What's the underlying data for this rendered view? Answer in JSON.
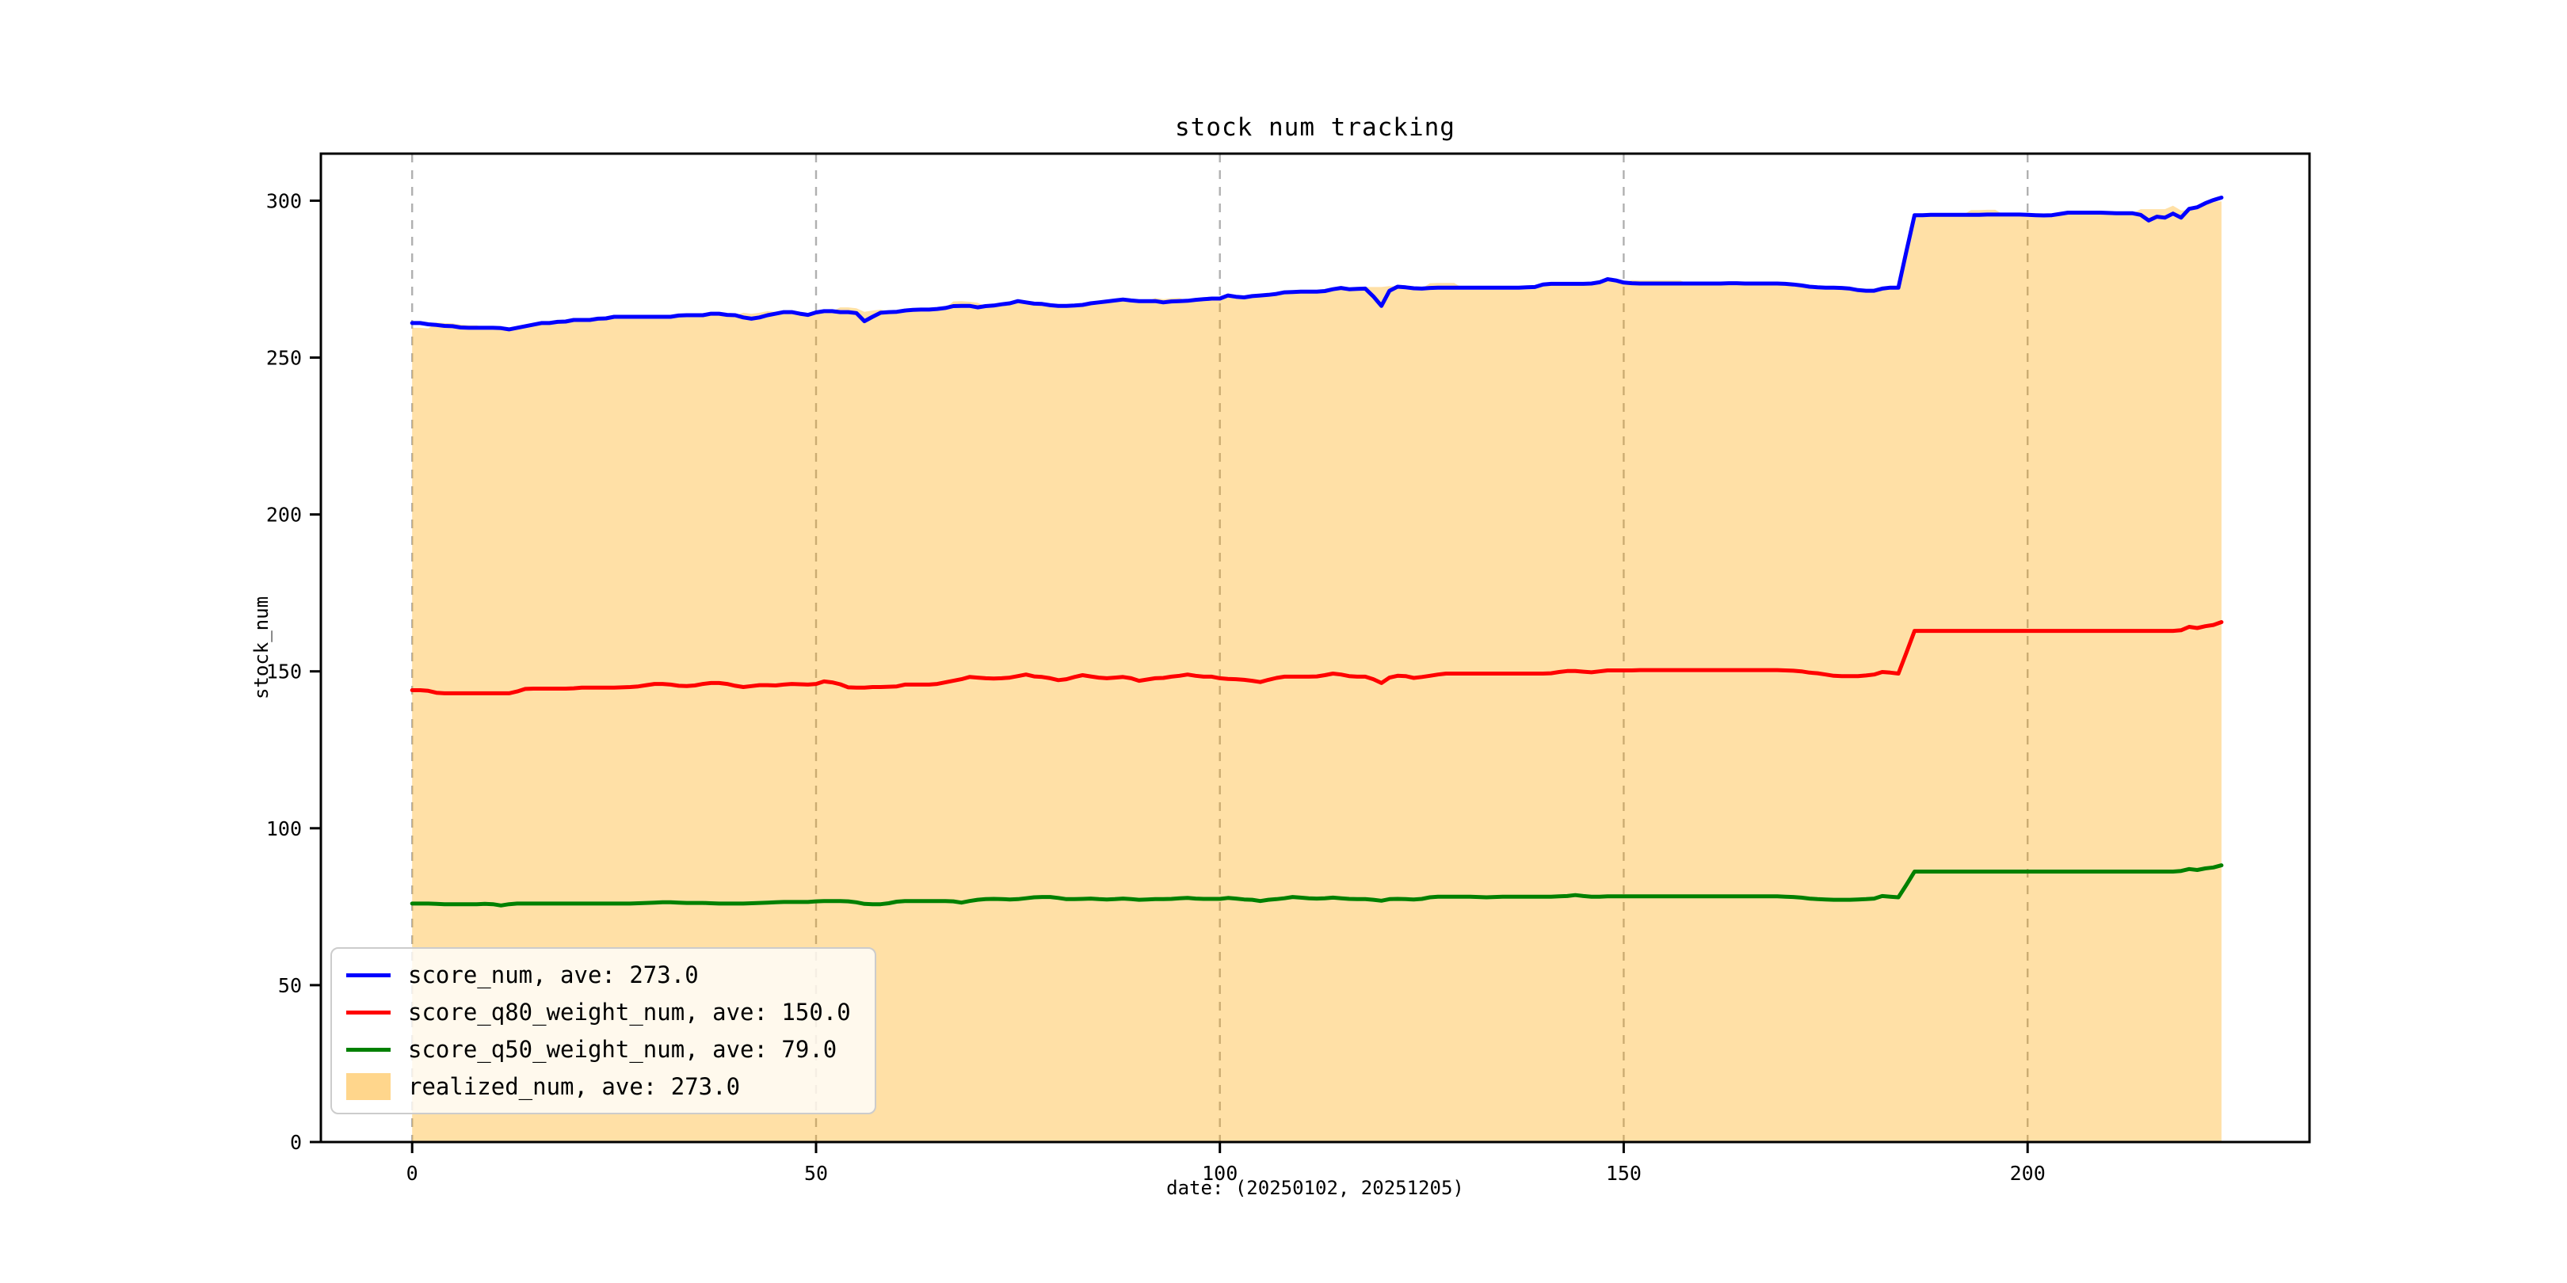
{
  "figure": {
    "title": "stock num tracking",
    "xlabel": "date: (20250102, 20251205)",
    "ylabel": "stock_num"
  },
  "colors": {
    "score_num": "#0000ff",
    "score_q80_weight_num": "#ff0000",
    "score_q50_weight_num": "#008000",
    "realized_fill": "#FFA500",
    "gridline": "#b0b0b0",
    "spine": "#000000",
    "legend_border": "#cccccc"
  },
  "chart_data": {
    "type": "line",
    "title": "stock num tracking",
    "xlabel": "date: (20250102, 20251205)",
    "ylabel": "stock_num",
    "xlim": [
      -11.3,
      234.9
    ],
    "ylim": [
      0,
      315
    ],
    "xticks": [
      0,
      50,
      100,
      150,
      200
    ],
    "yticks": [
      0,
      50,
      100,
      150,
      200,
      250,
      300
    ],
    "grid": "vertical-dashed",
    "legend_position": "lower left",
    "x_start": 0,
    "x_step": 1,
    "n_points": 225,
    "series": [
      {
        "name": "score_num",
        "label": "score_num, ave: 273.0",
        "ave": 273.0,
        "kind": "line",
        "color": "#0000ff",
        "values": [
          261,
          261,
          260.6,
          260.4,
          260.1,
          260,
          259.6,
          259.5,
          259.5,
          259.5,
          259.5,
          259.4,
          259,
          259.5,
          260,
          260.5,
          261,
          261,
          261.4,
          261.5,
          262,
          262,
          262,
          262.4,
          262.5,
          263,
          263,
          263,
          263,
          263,
          263,
          263,
          263,
          263.4,
          263.5,
          263.5,
          263.5,
          264,
          264,
          263.6,
          263.5,
          262.8,
          262.4,
          262.8,
          263.5,
          264,
          264.5,
          264.5,
          264,
          263.6,
          264.4,
          264.8,
          264.8,
          264.5,
          264.5,
          264.2,
          261.6,
          263,
          264.3,
          264.5,
          264.6,
          265,
          265.2,
          265.3,
          265.3,
          265.5,
          265.8,
          266.4,
          266.5,
          266.5,
          266,
          266.4,
          266.6,
          267,
          267.3,
          268,
          267.6,
          267.2,
          267.1,
          266.7,
          266.5,
          266.5,
          266.6,
          266.8,
          267.3,
          267.6,
          267.9,
          268.2,
          268.5,
          268.2,
          268,
          268,
          268,
          267.6,
          267.9,
          268,
          268.1,
          268.4,
          268.6,
          268.8,
          268.8,
          269.8,
          269.4,
          269.2,
          269.6,
          269.8,
          270,
          270.3,
          270.8,
          270.9,
          271,
          271,
          271,
          271.2,
          271.8,
          272.2,
          271.8,
          271.9,
          272,
          269.5,
          266.5,
          271.3,
          272.6,
          272.4,
          272.1,
          272,
          272.2,
          272.3,
          272.3,
          272.3,
          272.3,
          272.3,
          272.3,
          272.3,
          272.3,
          272.3,
          272.3,
          272.3,
          272.4,
          272.5,
          273.3,
          273.5,
          273.5,
          273.5,
          273.5,
          273.5,
          273.6,
          274,
          275,
          274.6,
          273.9,
          273.7,
          273.6,
          273.6,
          273.6,
          273.6,
          273.6,
          273.6,
          273.6,
          273.6,
          273.6,
          273.6,
          273.6,
          273.7,
          273.7,
          273.6,
          273.6,
          273.6,
          273.6,
          273.6,
          273.5,
          273.3,
          273,
          272.6,
          272.4,
          272.3,
          272.3,
          272.2,
          272,
          271.5,
          271.3,
          271.3,
          272,
          272.3,
          272.3,
          284,
          295.4,
          295.4,
          295.5,
          295.5,
          295.5,
          295.5,
          295.5,
          295.5,
          295.5,
          295.6,
          295.6,
          295.6,
          295.6,
          295.6,
          295.5,
          295.4,
          295.3,
          295.4,
          295.8,
          296.2,
          296.2,
          296.2,
          296.2,
          296.2,
          296.1,
          296,
          296,
          296,
          295.5,
          293.7,
          294.9,
          294.6,
          295.9,
          294.6,
          297.4,
          297.9,
          299.2,
          300.2,
          301
        ]
      },
      {
        "name": "score_q80_weight_num",
        "label": "score_q80_weight_num, ave: 150.0",
        "ave": 150.0,
        "kind": "line",
        "color": "#ff0000",
        "values": [
          144,
          144,
          143.8,
          143.2,
          143,
          143,
          143,
          143,
          143,
          143,
          143,
          143,
          143,
          143.6,
          144.4,
          144.5,
          144.5,
          144.5,
          144.5,
          144.5,
          144.6,
          144.8,
          144.8,
          144.8,
          144.8,
          144.8,
          144.9,
          145,
          145.2,
          145.6,
          146,
          146,
          145.8,
          145.4,
          145.3,
          145.5,
          146,
          146.3,
          146.3,
          146,
          145.4,
          145,
          145.3,
          145.6,
          145.6,
          145.5,
          145.8,
          146,
          145.9,
          145.8,
          146,
          146.8,
          146.5,
          145.9,
          144.9,
          144.8,
          144.8,
          145,
          145,
          145.1,
          145.2,
          145.8,
          145.8,
          145.8,
          145.8,
          146,
          146.5,
          147,
          147.5,
          148.2,
          148,
          147.8,
          147.7,
          147.8,
          148,
          148.5,
          149,
          148.4,
          148.2,
          147.8,
          147.2,
          147.5,
          148.2,
          148.8,
          148.4,
          148,
          147.8,
          148,
          148.2,
          147.8,
          147,
          147.4,
          147.8,
          147.9,
          148.3,
          148.6,
          149,
          148.6,
          148.3,
          148.3,
          147.8,
          147.6,
          147.5,
          147.3,
          147,
          146.6,
          147.3,
          147.9,
          148.3,
          148.3,
          148.3,
          148.3,
          148.4,
          148.8,
          149.3,
          149,
          148.5,
          148.3,
          148.3,
          147.5,
          146.3,
          148,
          148.6,
          148.5,
          147.9,
          148.2,
          148.6,
          149,
          149.3,
          149.3,
          149.3,
          149.3,
          149.3,
          149.3,
          149.3,
          149.3,
          149.3,
          149.3,
          149.3,
          149.3,
          149.3,
          149.4,
          149.8,
          150.1,
          150.1,
          149.9,
          149.7,
          150,
          150.3,
          150.3,
          150.3,
          150.3,
          150.4,
          150.4,
          150.4,
          150.4,
          150.4,
          150.4,
          150.4,
          150.4,
          150.4,
          150.4,
          150.4,
          150.4,
          150.4,
          150.4,
          150.4,
          150.4,
          150.4,
          150.4,
          150.3,
          150.2,
          150,
          149.6,
          149.4,
          149,
          148.6,
          148.5,
          148.5,
          148.5,
          148.7,
          149,
          149.8,
          149.6,
          149.3,
          156,
          162.9,
          162.9,
          162.9,
          162.9,
          162.9,
          162.9,
          162.9,
          162.9,
          162.9,
          162.9,
          162.9,
          162.9,
          162.9,
          162.9,
          162.9,
          162.9,
          162.9,
          162.9,
          162.9,
          162.9,
          162.9,
          162.9,
          162.9,
          162.9,
          162.9,
          162.9,
          162.9,
          162.9,
          162.9,
          162.9,
          162.9,
          162.9,
          162.9,
          163.1,
          164.2,
          163.8,
          164.4,
          164.8,
          165.7
        ]
      },
      {
        "name": "score_q50_weight_num",
        "label": "score_q50_weight_num, ave: 79.0",
        "ave": 79.0,
        "kind": "line",
        "color": "#008000",
        "values": [
          76,
          76,
          76,
          75.9,
          75.8,
          75.8,
          75.8,
          75.8,
          75.8,
          75.9,
          75.8,
          75.4,
          75.8,
          76,
          76,
          76,
          76,
          76,
          76,
          76,
          76,
          76,
          76,
          76,
          76,
          76,
          76,
          76,
          76.1,
          76.2,
          76.3,
          76.4,
          76.4,
          76.3,
          76.2,
          76.2,
          76.2,
          76.1,
          76,
          76,
          76,
          76,
          76.1,
          76.2,
          76.3,
          76.4,
          76.5,
          76.5,
          76.5,
          76.5,
          76.7,
          76.8,
          76.8,
          76.8,
          76.7,
          76.4,
          75.9,
          75.8,
          75.8,
          76.1,
          76.6,
          76.8,
          76.8,
          76.8,
          76.8,
          76.8,
          76.8,
          76.7,
          76.3,
          76.8,
          77.2,
          77.4,
          77.5,
          77.4,
          77.3,
          77.4,
          77.7,
          78,
          78.1,
          78.1,
          77.8,
          77.4,
          77.4,
          77.5,
          77.6,
          77.4,
          77.3,
          77.4,
          77.6,
          77.4,
          77.2,
          77.3,
          77.4,
          77.4,
          77.5,
          77.7,
          77.8,
          77.6,
          77.5,
          77.5,
          77.5,
          77.8,
          77.6,
          77.3,
          77.2,
          76.8,
          77.2,
          77.4,
          77.7,
          78.1,
          77.9,
          77.7,
          77.6,
          77.7,
          77.9,
          77.7,
          77.5,
          77.4,
          77.4,
          77.2,
          76.9,
          77.4,
          77.5,
          77.4,
          77.3,
          77.5,
          78,
          78.2,
          78.2,
          78.2,
          78.2,
          78.2,
          78.1,
          78,
          78.1,
          78.2,
          78.2,
          78.2,
          78.2,
          78.2,
          78.2,
          78.2,
          78.3,
          78.4,
          78.7,
          78.4,
          78.2,
          78.2,
          78.3,
          78.3,
          78.3,
          78.3,
          78.3,
          78.3,
          78.3,
          78.3,
          78.3,
          78.3,
          78.3,
          78.3,
          78.3,
          78.3,
          78.3,
          78.3,
          78.3,
          78.3,
          78.3,
          78.3,
          78.3,
          78.3,
          78.2,
          78.1,
          77.9,
          77.6,
          77.4,
          77.3,
          77.2,
          77.2,
          77.2,
          77.3,
          77.4,
          77.6,
          78.4,
          78.2,
          78,
          82,
          86.2,
          86.2,
          86.2,
          86.2,
          86.2,
          86.2,
          86.2,
          86.2,
          86.2,
          86.2,
          86.2,
          86.2,
          86.2,
          86.2,
          86.2,
          86.2,
          86.2,
          86.2,
          86.2,
          86.2,
          86.2,
          86.2,
          86.2,
          86.2,
          86.2,
          86.2,
          86.2,
          86.2,
          86.2,
          86.2,
          86.2,
          86.2,
          86.2,
          86.4,
          87,
          86.7,
          87.2,
          87.5,
          88.2
        ]
      },
      {
        "name": "realized_num",
        "label": "realized_num, ave: 273.0",
        "ave": 273.0,
        "kind": "area",
        "color": "#FFA500",
        "alpha": 0.35,
        "values": [
          259.5,
          259.5,
          259.3,
          261.2,
          261,
          260.9,
          260.5,
          260.3,
          260.3,
          259.5,
          259.5,
          259.4,
          259,
          259.5,
          260,
          260.5,
          261,
          261,
          261.4,
          262,
          262,
          262,
          262,
          262.4,
          262.5,
          263,
          263,
          263,
          263,
          263,
          263,
          263,
          263,
          263.4,
          263.5,
          263.5,
          263.5,
          264,
          264,
          263.6,
          263.5,
          264.3,
          264,
          264.3,
          264.8,
          264.6,
          264.5,
          264.5,
          264,
          263.6,
          264.4,
          264.8,
          264.8,
          266,
          266,
          265.7,
          264.6,
          265,
          265.3,
          264.5,
          264.6,
          265,
          265.2,
          265.3,
          265.3,
          265.5,
          265.8,
          267.9,
          268,
          267.8,
          267.5,
          266.4,
          266.6,
          267,
          267.3,
          268,
          267.6,
          267.2,
          267.1,
          266.7,
          266.5,
          266.5,
          266.6,
          266.8,
          267.3,
          267.6,
          267.9,
          268.2,
          268.5,
          268.2,
          268,
          268,
          269,
          268.6,
          268.9,
          269,
          268.1,
          268.4,
          268.6,
          268.8,
          268.8,
          269.8,
          269.4,
          269.2,
          269.6,
          269.8,
          270,
          270.3,
          270.8,
          270.9,
          271,
          271,
          271,
          271.2,
          271.8,
          272.2,
          271.8,
          271.9,
          272.5,
          272.5,
          272.5,
          272.8,
          272.6,
          272.4,
          272.1,
          272,
          273.7,
          273.8,
          273.8,
          273.8,
          272.3,
          272.3,
          272.3,
          272.3,
          272.3,
          272.3,
          272.3,
          272.3,
          272.4,
          272.5,
          273.3,
          273.5,
          273.5,
          273.5,
          273.5,
          273.5,
          273.6,
          274,
          275,
          274.6,
          273.9,
          274.7,
          274.6,
          274.6,
          274.6,
          274.6,
          274.6,
          274.6,
          273.6,
          273.6,
          273.6,
          273.6,
          273.6,
          273.7,
          273.7,
          273.6,
          273.6,
          273.6,
          273.6,
          273.6,
          273.5,
          273.3,
          273,
          272.6,
          272.4,
          272.3,
          272.3,
          272.2,
          272,
          271.5,
          271.3,
          271.3,
          272,
          272.3,
          272.3,
          284,
          295.4,
          295.4,
          295.5,
          295.5,
          295.5,
          295.5,
          295.5,
          297,
          297,
          297.1,
          297.1,
          295.6,
          295.6,
          295.6,
          295.5,
          295.4,
          295.3,
          295.4,
          295.8,
          296.2,
          296.2,
          296.2,
          296.2,
          296.2,
          296.1,
          296,
          296,
          296,
          297.3,
          297.3,
          297.3,
          297.3,
          298.4,
          296.9,
          297,
          297.5,
          298.8,
          299.7,
          299.8
        ]
      }
    ]
  }
}
